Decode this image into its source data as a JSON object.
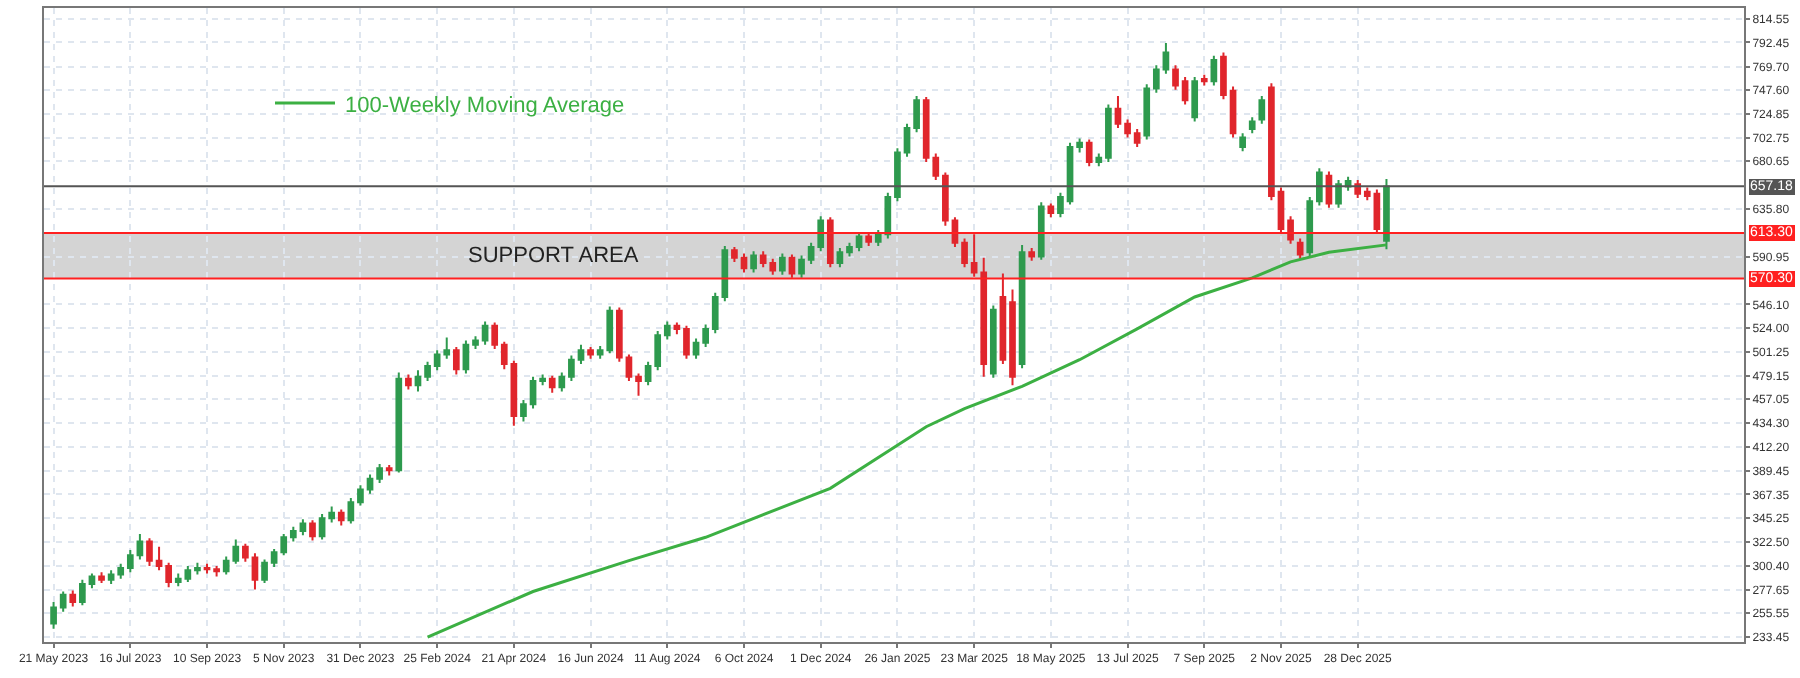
{
  "chart_data": {
    "type": "candlestick",
    "x": [
      "2023-05-21",
      "2023-05-28",
      "2023-06-04",
      "2023-06-11",
      "2023-06-18",
      "2023-06-25",
      "2023-07-02",
      "2023-07-09",
      "2023-07-16",
      "2023-07-23",
      "2023-07-30",
      "2023-08-06",
      "2023-08-13",
      "2023-08-20",
      "2023-08-27",
      "2023-09-03",
      "2023-09-10",
      "2023-09-17",
      "2023-09-24",
      "2023-10-01",
      "2023-10-08",
      "2023-10-15",
      "2023-10-22",
      "2023-10-29",
      "2023-11-05",
      "2023-11-12",
      "2023-11-19",
      "2023-11-26",
      "2023-12-03",
      "2023-12-10",
      "2023-12-17",
      "2023-12-24",
      "2023-12-31",
      "2024-01-07",
      "2024-01-14",
      "2024-01-21",
      "2024-01-28",
      "2024-02-04",
      "2024-02-11",
      "2024-02-18",
      "2024-02-25",
      "2024-03-03",
      "2024-03-10",
      "2024-03-17",
      "2024-03-24",
      "2024-03-31",
      "2024-04-07",
      "2024-04-14",
      "2024-04-21",
      "2024-04-28",
      "2024-05-05",
      "2024-05-12",
      "2024-05-19",
      "2024-05-26",
      "2024-06-02",
      "2024-06-09",
      "2024-06-16",
      "2024-06-23",
      "2024-06-30",
      "2024-07-07",
      "2024-07-14",
      "2024-07-21",
      "2024-07-28",
      "2024-08-04",
      "2024-08-11",
      "2024-08-18",
      "2024-08-25",
      "2024-09-01",
      "2024-09-08",
      "2024-09-15",
      "2024-09-22",
      "2024-09-29",
      "2024-10-06",
      "2024-10-13",
      "2024-10-20",
      "2024-10-27",
      "2024-11-03",
      "2024-11-10",
      "2024-11-17",
      "2024-11-24",
      "2024-12-01",
      "2024-12-08",
      "2024-12-15",
      "2024-12-22",
      "2024-12-29",
      "2025-01-05",
      "2025-01-12",
      "2025-01-19",
      "2025-01-26",
      "2025-02-02",
      "2025-02-09",
      "2025-02-16",
      "2025-02-23",
      "2025-03-02",
      "2025-03-09",
      "2025-03-16",
      "2025-03-23",
      "2025-03-30",
      "2025-04-06",
      "2025-04-13",
      "2025-04-20",
      "2025-04-27",
      "2025-05-04",
      "2025-05-11",
      "2025-05-18",
      "2025-05-25",
      "2025-06-01",
      "2025-06-08",
      "2025-06-15",
      "2025-06-22",
      "2025-06-29",
      "2025-07-06",
      "2025-07-13",
      "2025-07-20",
      "2025-07-27",
      "2025-08-03",
      "2025-08-10",
      "2025-08-17",
      "2025-08-24",
      "2025-08-31",
      "2025-09-07",
      "2025-09-14",
      "2025-09-21",
      "2025-09-28",
      "2025-10-05",
      "2025-10-12",
      "2025-10-19",
      "2025-10-26",
      "2025-11-02",
      "2025-11-09",
      "2025-11-16",
      "2025-11-23",
      "2025-11-30",
      "2025-12-07",
      "2025-12-14",
      "2025-12-21",
      "2025-12-28",
      "2026-01-04",
      "2026-01-11",
      "2026-01-18"
    ],
    "ohlc": [
      [
        246,
        266,
        241,
        261
      ],
      [
        261,
        276,
        257,
        273
      ],
      [
        273,
        277,
        262,
        266
      ],
      [
        266,
        287,
        263,
        283
      ],
      [
        283,
        293,
        279,
        290
      ],
      [
        290,
        294,
        284,
        287
      ],
      [
        287,
        296,
        283,
        292
      ],
      [
        292,
        302,
        288,
        298
      ],
      [
        298,
        315,
        294,
        310
      ],
      [
        310,
        330,
        306,
        323
      ],
      [
        323,
        326,
        300,
        305
      ],
      [
        305,
        318,
        296,
        300
      ],
      [
        300,
        303,
        280,
        285
      ],
      [
        285,
        293,
        281,
        288
      ],
      [
        288,
        300,
        285,
        296
      ],
      [
        296,
        303,
        292,
        298
      ],
      [
        298,
        302,
        293,
        297
      ],
      [
        297,
        300,
        290,
        295
      ],
      [
        295,
        309,
        292,
        305
      ],
      [
        305,
        325,
        302,
        318
      ],
      [
        318,
        321,
        304,
        308
      ],
      [
        308,
        312,
        278,
        287
      ],
      [
        287,
        306,
        284,
        303
      ],
      [
        303,
        316,
        299,
        313
      ],
      [
        313,
        330,
        310,
        327
      ],
      [
        327,
        337,
        323,
        333
      ],
      [
        333,
        344,
        329,
        340
      ],
      [
        340,
        343,
        324,
        328
      ],
      [
        328,
        349,
        325,
        345
      ],
      [
        345,
        356,
        341,
        350
      ],
      [
        350,
        353,
        338,
        343
      ],
      [
        343,
        364,
        340,
        360
      ],
      [
        360,
        376,
        357,
        372
      ],
      [
        372,
        386,
        368,
        382
      ],
      [
        382,
        396,
        378,
        392
      ],
      [
        392,
        395,
        385,
        390
      ],
      [
        390,
        482,
        388,
        476
      ],
      [
        476,
        480,
        466,
        470
      ],
      [
        470,
        484,
        464,
        478
      ],
      [
        478,
        492,
        474,
        488
      ],
      [
        488,
        503,
        484,
        499
      ],
      [
        499,
        515,
        495,
        503
      ],
      [
        503,
        506,
        480,
        485
      ],
      [
        485,
        512,
        481,
        508
      ],
      [
        508,
        516,
        504,
        512
      ],
      [
        512,
        530,
        508,
        526
      ],
      [
        526,
        529,
        504,
        508
      ],
      [
        508,
        511,
        485,
        490
      ],
      [
        490,
        493,
        432,
        441
      ],
      [
        441,
        456,
        436,
        452
      ],
      [
        452,
        478,
        448,
        474
      ],
      [
        474,
        480,
        470,
        476
      ],
      [
        476,
        479,
        463,
        468
      ],
      [
        468,
        482,
        464,
        478
      ],
      [
        478,
        498,
        474,
        494
      ],
      [
        494,
        508,
        490,
        503
      ],
      [
        503,
        506,
        495,
        499
      ],
      [
        499,
        507,
        495,
        503
      ],
      [
        503,
        544,
        500,
        540
      ],
      [
        540,
        543,
        492,
        496
      ],
      [
        496,
        499,
        474,
        478
      ],
      [
        478,
        481,
        460,
        474
      ],
      [
        474,
        492,
        470,
        488
      ],
      [
        488,
        521,
        484,
        517
      ],
      [
        517,
        530,
        513,
        526
      ],
      [
        526,
        529,
        518,
        523
      ],
      [
        523,
        526,
        495,
        499
      ],
      [
        499,
        514,
        495,
        510
      ],
      [
        510,
        527,
        506,
        523
      ],
      [
        523,
        557,
        519,
        553
      ],
      [
        553,
        601,
        549,
        597
      ],
      [
        597,
        600,
        586,
        590
      ],
      [
        590,
        594,
        576,
        580
      ],
      [
        580,
        596,
        576,
        592
      ],
      [
        592,
        596,
        581,
        585
      ],
      [
        585,
        589,
        574,
        578
      ],
      [
        578,
        594,
        574,
        590
      ],
      [
        590,
        593,
        571,
        575
      ],
      [
        575,
        592,
        571,
        588
      ],
      [
        588,
        604,
        584,
        600
      ],
      [
        600,
        629,
        596,
        625
      ],
      [
        625,
        628,
        581,
        585
      ],
      [
        585,
        599,
        581,
        595
      ],
      [
        595,
        604,
        591,
        600
      ],
      [
        600,
        614,
        596,
        610
      ],
      [
        610,
        613,
        601,
        605
      ],
      [
        605,
        616,
        601,
        612
      ],
      [
        612,
        651,
        608,
        647
      ],
      [
        647,
        693,
        643,
        689
      ],
      [
        689,
        716,
        685,
        712
      ],
      [
        712,
        742,
        708,
        738
      ],
      [
        738,
        741,
        680,
        684
      ],
      [
        684,
        688,
        663,
        667
      ],
      [
        667,
        670,
        620,
        625
      ],
      [
        625,
        628,
        600,
        604
      ],
      [
        604,
        608,
        581,
        585
      ],
      [
        585,
        612,
        572,
        576
      ],
      [
        576,
        590,
        478,
        490
      ],
      [
        481,
        545,
        477,
        541
      ],
      [
        553,
        575,
        490,
        494
      ],
      [
        548,
        560,
        470,
        478
      ],
      [
        490,
        602,
        486,
        595
      ],
      [
        595,
        599,
        587,
        591
      ],
      [
        591,
        642,
        588,
        638
      ],
      [
        638,
        641,
        628,
        632
      ],
      [
        632,
        651,
        628,
        647
      ],
      [
        643,
        698,
        640,
        694
      ],
      [
        694,
        702,
        689,
        698
      ],
      [
        698,
        701,
        676,
        680
      ],
      [
        680,
        688,
        676,
        684
      ],
      [
        684,
        734,
        680,
        730
      ],
      [
        730,
        742,
        712,
        716
      ],
      [
        716,
        720,
        703,
        707
      ],
      [
        707,
        711,
        694,
        698
      ],
      [
        705,
        753,
        701,
        749
      ],
      [
        749,
        771,
        745,
        767
      ],
      [
        767,
        792,
        763,
        783
      ],
      [
        767,
        771,
        748,
        752
      ],
      [
        756,
        760,
        734,
        738
      ],
      [
        722,
        760,
        718,
        756
      ],
      [
        758,
        762,
        752,
        756
      ],
      [
        756,
        780,
        752,
        776
      ],
      [
        779,
        783,
        739,
        743
      ],
      [
        747,
        751,
        703,
        707
      ],
      [
        694,
        707,
        690,
        703
      ],
      [
        711,
        722,
        707,
        718
      ],
      [
        720,
        742,
        716,
        738
      ],
      [
        750,
        754,
        644,
        648
      ],
      [
        652,
        656,
        613,
        617
      ],
      [
        625,
        629,
        603,
        607
      ],
      [
        604,
        608,
        588,
        593
      ],
      [
        595,
        647,
        591,
        643
      ],
      [
        643,
        674,
        639,
        670
      ],
      [
        667,
        671,
        637,
        641
      ],
      [
        641,
        663,
        637,
        659
      ],
      [
        657,
        666,
        653,
        662
      ],
      [
        659,
        663,
        646,
        650
      ],
      [
        652,
        656,
        644,
        648
      ],
      [
        650,
        654,
        613,
        617
      ],
      [
        606,
        664,
        598,
        657
      ]
    ],
    "series": [
      {
        "type": "line",
        "name": "100-Weekly Moving Average",
        "color": "#3cb043",
        "x": [
          "2024-02-18",
          "2024-05-05",
          "2024-07-14",
          "2024-09-08",
          "2024-12-08",
          "2025-02-16",
          "2025-03-16",
          "2025-04-27",
          "2025-06-08",
          "2025-07-20",
          "2025-08-31",
          "2025-10-12",
          "2025-11-09",
          "2025-12-07",
          "2026-01-18"
        ],
        "values": [
          233,
          276,
          305,
          327,
          373,
          431,
          448,
          469,
          494,
          523,
          553,
          571,
          586,
          595,
          602
        ]
      }
    ],
    "xlim": [
      "2023-05-14",
      "2026-10-06"
    ],
    "xticks": [
      {
        "value": "2023-05-21",
        "label": "21 May 2023"
      },
      {
        "value": "2023-07-16",
        "label": "16 Jul 2023"
      },
      {
        "value": "2023-09-10",
        "label": "10 Sep 2023"
      },
      {
        "value": "2023-11-05",
        "label": "5 Nov 2023"
      },
      {
        "value": "2023-12-31",
        "label": "31 Dec 2023"
      },
      {
        "value": "2024-02-25",
        "label": "25 Feb 2024"
      },
      {
        "value": "2024-04-21",
        "label": "21 Apr 2024"
      },
      {
        "value": "2024-06-16",
        "label": "16 Jun 2024"
      },
      {
        "value": "2024-08-11",
        "label": "11 Aug 2024"
      },
      {
        "value": "2024-10-06",
        "label": "6 Oct 2024"
      },
      {
        "value": "2024-12-01",
        "label": "1 Dec 2024"
      },
      {
        "value": "2025-01-26",
        "label": "26 Jan 2025"
      },
      {
        "value": "2025-03-23",
        "label": "23 Mar 2025"
      },
      {
        "value": "2025-05-18",
        "label": "18 May 2025"
      },
      {
        "value": "2025-07-13",
        "label": "13 Jul 2025"
      },
      {
        "value": "2025-09-07",
        "label": "7 Sep 2025"
      },
      {
        "value": "2025-11-02",
        "label": "2 Nov 2025"
      },
      {
        "value": "2025-12-28",
        "label": "28 Dec 2025"
      }
    ],
    "ylim": [
      228.5,
      824.8
    ],
    "yticks": [
      814.55,
      792.45,
      {
        "value": 769.7,
        "label": "769.70"
      },
      {
        "value": 747.6,
        "label": "747.60"
      },
      724.85,
      702.75,
      680.65,
      {
        "value": 635.8,
        "label": "635.80"
      },
      590.95,
      {
        "value": 546.1,
        "label": "546.10"
      },
      {
        "value": 524,
        "label": "524.00"
      },
      501.25,
      479.15,
      457.05,
      {
        "value": 434.3,
        "label": "434.30"
      },
      {
        "value": 412.2,
        "label": "412.20"
      },
      389.45,
      367.35,
      345.25,
      {
        "value": 322.5,
        "label": "322.50"
      },
      {
        "value": 300.4,
        "label": "300.40"
      },
      277.65,
      255.55,
      233.45
    ],
    "bands": [
      {
        "axis": "y",
        "from": 570.3,
        "to": 613.3,
        "label": "SUPPORT AREA",
        "color": "#d4d4d4"
      }
    ],
    "ref_lines": [
      {
        "axis": "y",
        "value": 613.3,
        "label": "613.30",
        "color": "#ff2020"
      },
      {
        "axis": "y",
        "value": 570.3,
        "label": "570.30",
        "color": "#ff2020"
      },
      {
        "axis": "y",
        "value": 657.18,
        "label": "657.18",
        "color": "#555555"
      }
    ],
    "grid": true,
    "legend": "top left"
  }
}
